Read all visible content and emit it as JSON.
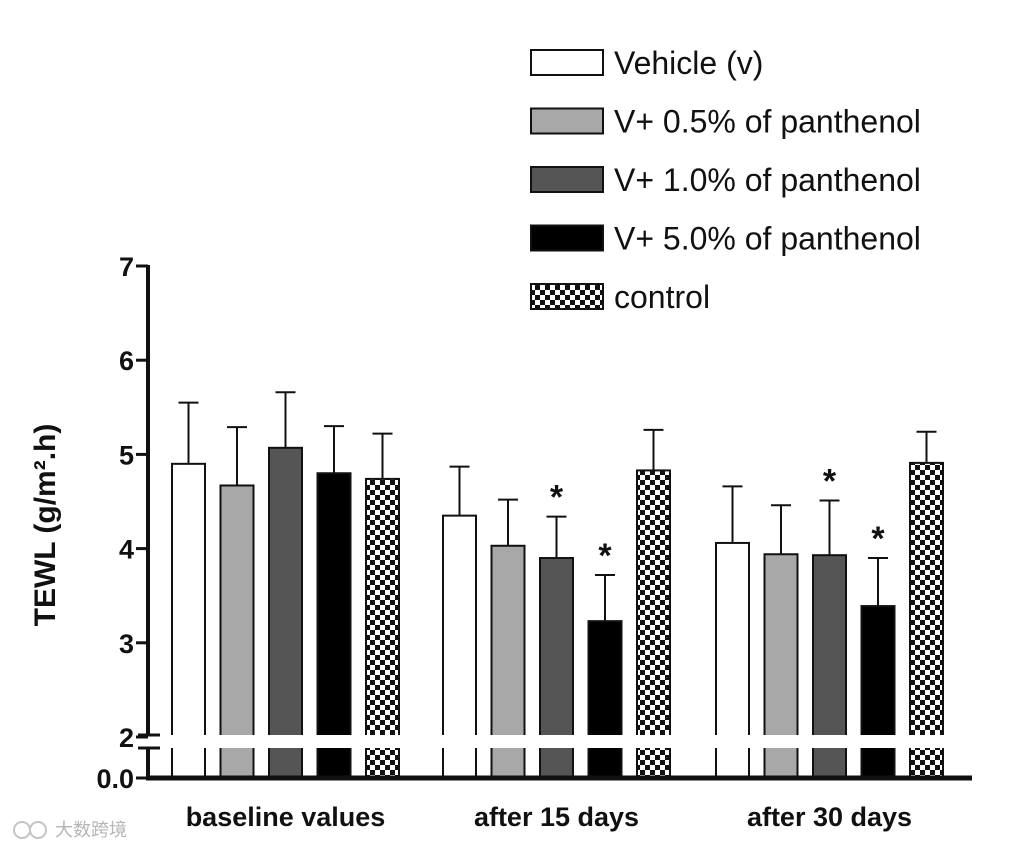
{
  "chart_data": {
    "type": "bar",
    "ylabel": "TEWL (g/m².h)",
    "categories": [
      "baseline values",
      "after 15 days",
      "after 30 days"
    ],
    "y_axis": {
      "ticks": [
        "0.0",
        "2",
        "3",
        "4",
        "5",
        "6",
        "7"
      ],
      "upper_range": [
        2,
        7
      ],
      "axis_break": "between 0.0 and 2"
    },
    "series": [
      {
        "name": "Vehicle (v)",
        "fill": "white",
        "values": [
          4.9,
          4.35,
          4.06
        ],
        "errors": [
          0.65,
          0.52,
          0.6
        ],
        "significant": [
          false,
          false,
          false
        ]
      },
      {
        "name": "V+ 0.5% of panthenol",
        "fill": "#a8a8a8",
        "values": [
          4.67,
          4.03,
          3.94
        ],
        "errors": [
          0.62,
          0.49,
          0.52
        ],
        "significant": [
          false,
          false,
          false
        ]
      },
      {
        "name": "V+ 1.0% of panthenol",
        "fill": "#555555",
        "values": [
          5.07,
          3.9,
          3.93
        ],
        "errors": [
          0.59,
          0.44,
          0.58
        ],
        "significant": [
          false,
          true,
          true
        ]
      },
      {
        "name": "V+ 5.0% of panthenol",
        "fill": "#000000",
        "values": [
          4.8,
          3.23,
          3.39
        ],
        "errors": [
          0.5,
          0.49,
          0.51
        ],
        "significant": [
          false,
          true,
          true
        ]
      },
      {
        "name": "control",
        "fill": "checker",
        "values": [
          4.74,
          4.83,
          4.91
        ],
        "errors": [
          0.48,
          0.43,
          0.33
        ],
        "significant": [
          false,
          false,
          false
        ]
      }
    ],
    "significance_marker": "*",
    "legend": "top-right",
    "grid": false
  },
  "watermark": "大数跨境"
}
